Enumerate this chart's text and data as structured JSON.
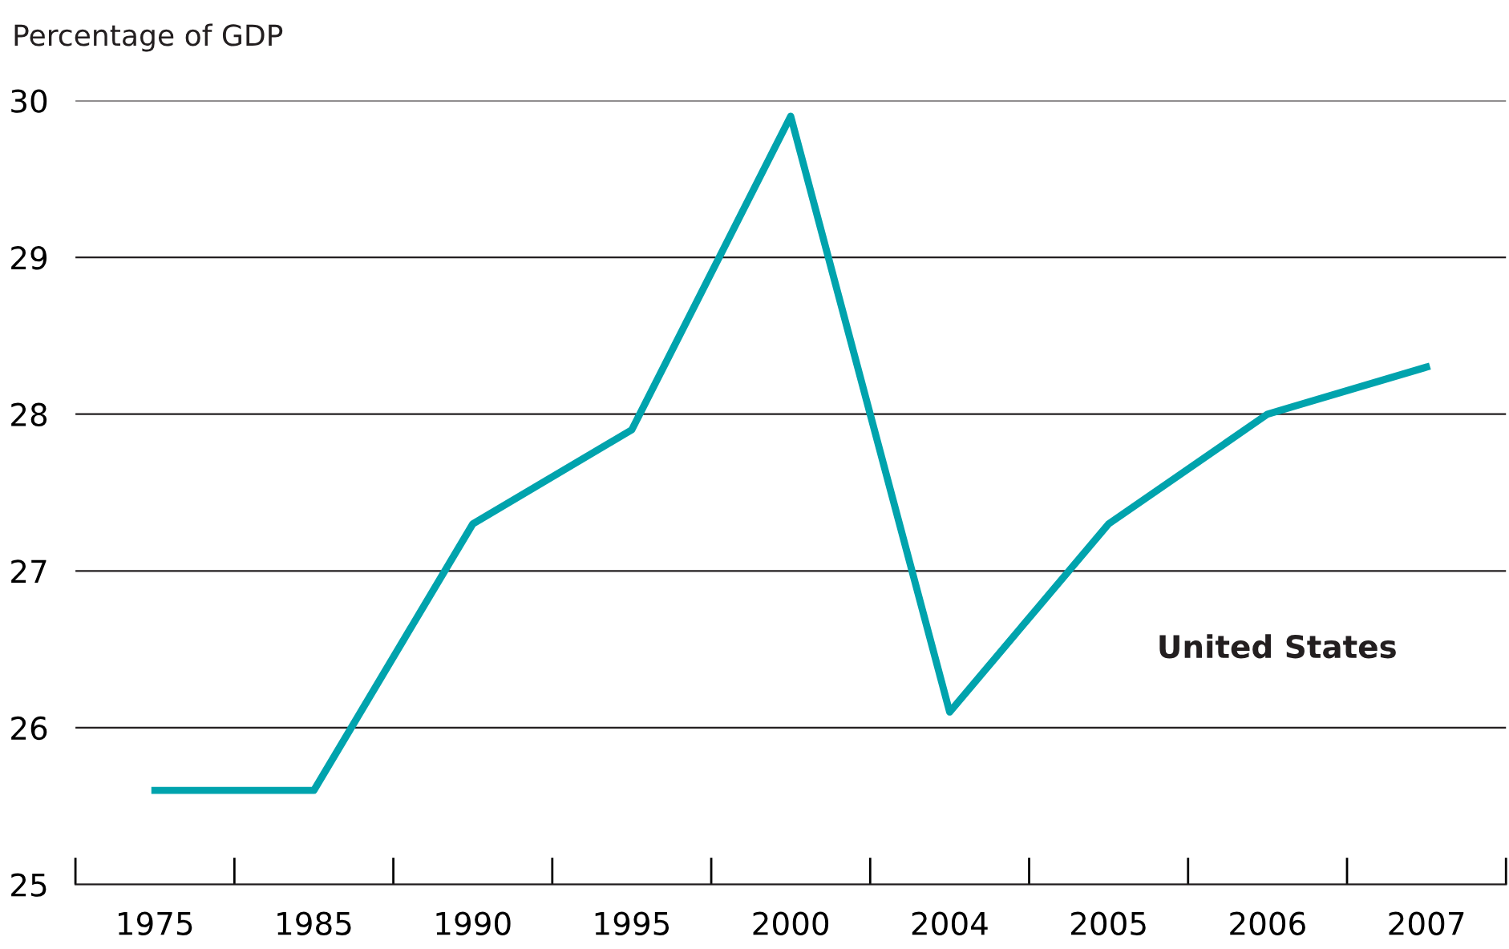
{
  "chart_data": {
    "type": "line",
    "ylabel": "Percentage of GDP",
    "categories": [
      "1975",
      "1985",
      "1990",
      "1995",
      "2000",
      "2004",
      "2005",
      "2006",
      "2007"
    ],
    "series": [
      {
        "name": "United States",
        "color": "#00a3ad",
        "values": [
          25.6,
          25.6,
          27.3,
          27.9,
          29.9,
          26.1,
          27.3,
          28.0,
          28.3
        ]
      }
    ],
    "ylim": [
      25,
      30
    ],
    "yticks": [
      25,
      26,
      27,
      28,
      29,
      30
    ],
    "grid": "y",
    "legend": false,
    "marker": "none",
    "line_style": "solid"
  }
}
